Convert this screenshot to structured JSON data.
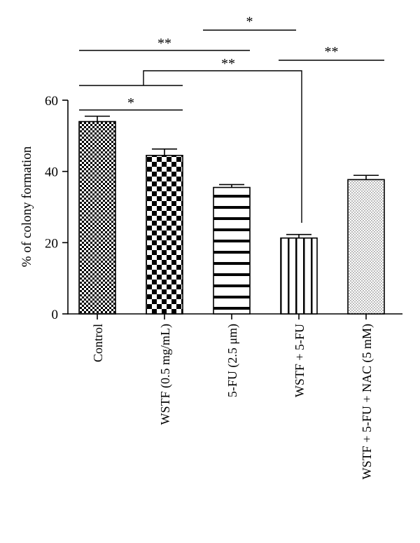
{
  "chart_data": {
    "type": "bar",
    "ylabel": "% of colony formation",
    "ylim": [
      0,
      60
    ],
    "yticks": [
      0,
      20,
      40,
      60
    ],
    "categories": [
      "Control",
      "WSTF (0.5 mg/mL)",
      "5-FU (2.5 μm)",
      "WSTF + 5-FU",
      "WSTF + 5-FU + NAC (5 mM)"
    ],
    "values": [
      54,
      44.5,
      35.5,
      21.3,
      37.7
    ],
    "errors": [
      1.5,
      1.8,
      0.8,
      1.0,
      1.2
    ],
    "patterns": [
      "fine-check",
      "coarse-check",
      "horizontal-stripes",
      "vertical-stripes",
      "dots"
    ],
    "significance": [
      {
        "from": 0,
        "to": 1,
        "label": "*"
      },
      {
        "from": 0,
        "to": 1,
        "label": ""
      },
      {
        "from": 0,
        "to": 2,
        "label": "**"
      },
      {
        "from": 2,
        "to": 3,
        "label": "*"
      },
      {
        "from": 3,
        "to": 4,
        "label": "**"
      },
      {
        "from": 1,
        "to": 3,
        "label": "**"
      }
    ]
  }
}
